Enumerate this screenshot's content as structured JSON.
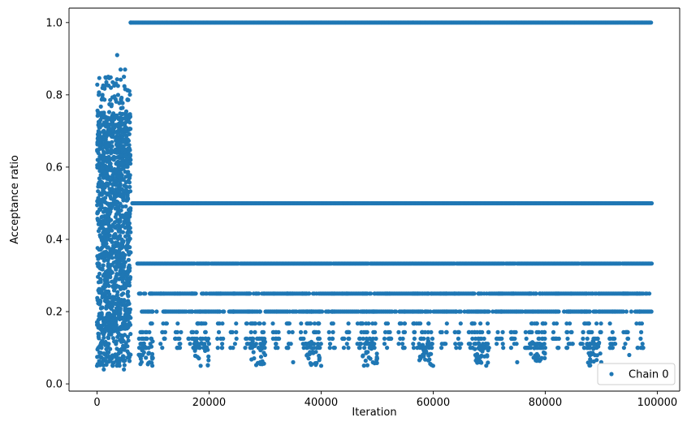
{
  "chart_data": {
    "type": "scatter",
    "xlabel": "Iteration",
    "ylabel": "Acceptance ratio",
    "xlim": [
      -5000,
      104000
    ],
    "ylim": [
      -0.02,
      1.04
    ],
    "x_ticks": [
      0,
      20000,
      40000,
      60000,
      80000,
      100000
    ],
    "x_tick_labels": [
      "0",
      "20000",
      "40000",
      "60000",
      "80000",
      "100000"
    ],
    "y_ticks": [
      0.0,
      0.2,
      0.4,
      0.6,
      0.8,
      1.0
    ],
    "y_tick_labels": [
      "0.0",
      "0.2",
      "0.4",
      "0.6",
      "0.8",
      "1.0"
    ],
    "grid": false,
    "legend_position": "bottom-right",
    "marker_color": "#1f77b4",
    "series": [
      {
        "name": "Chain 0",
        "description_of_distribution": {
          "burn_in_range": [
            0,
            6000
          ],
          "burn_in_y_range": [
            0.03,
            0.91
          ],
          "post_burn_in_range": [
            6000,
            99000
          ],
          "discrete_levels": [
            1.0,
            0.5,
            0.333,
            0.25,
            0.2,
            0.167,
            0.143,
            0.125,
            0.111,
            0.1
          ]
        },
        "points": [
          [
            0,
            0.05
          ],
          [
            1200,
            0.04
          ],
          [
            2000,
            0.85
          ],
          [
            3600,
            0.91
          ],
          [
            4200,
            0.87
          ],
          [
            5000,
            0.87
          ],
          [
            800,
            0.1
          ],
          [
            1500,
            0.15
          ],
          [
            2500,
            0.6
          ],
          [
            3000,
            0.7
          ],
          [
            3400,
            0.5
          ],
          [
            4500,
            0.3
          ],
          [
            5200,
            0.2
          ],
          [
            5600,
            0.12
          ],
          [
            300,
            0.8
          ],
          [
            900,
            0.75
          ],
          [
            2800,
            0.05
          ],
          [
            4800,
            0.04
          ],
          [
            6000,
            1.0
          ],
          [
            20000,
            1.0
          ],
          [
            40000,
            1.0
          ],
          [
            60000,
            1.0
          ],
          [
            80000,
            1.0
          ],
          [
            98500,
            1.0
          ],
          [
            6500,
            0.5
          ],
          [
            30000,
            0.5
          ],
          [
            60000,
            0.5
          ],
          [
            98500,
            0.5
          ],
          [
            7000,
            0.333
          ],
          [
            30000,
            0.333
          ],
          [
            60000,
            0.333
          ],
          [
            98500,
            0.333
          ],
          [
            7500,
            0.25
          ],
          [
            40000,
            0.25
          ],
          [
            98500,
            0.25
          ],
          [
            8000,
            0.2
          ],
          [
            50000,
            0.2
          ],
          [
            98500,
            0.2
          ],
          [
            30000,
            0.08
          ],
          [
            35000,
            0.06
          ],
          [
            40000,
            0.05
          ],
          [
            50000,
            0.07
          ],
          [
            60000,
            0.05
          ],
          [
            75000,
            0.06
          ],
          [
            90000,
            0.06
          ],
          [
            95000,
            0.08
          ]
        ]
      }
    ]
  }
}
